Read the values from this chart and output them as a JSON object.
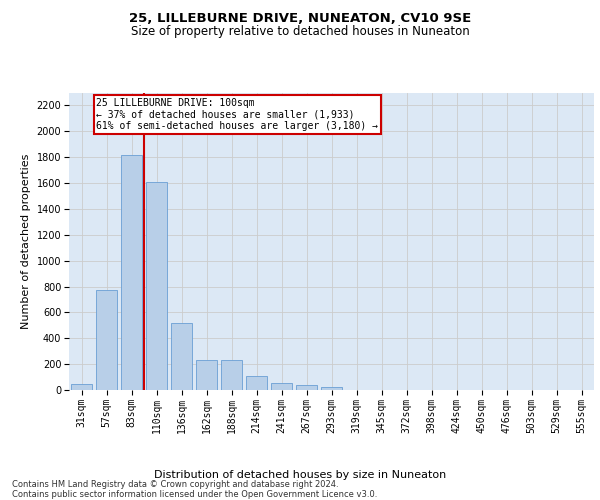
{
  "title": "25, LILLEBURNE DRIVE, NUNEATON, CV10 9SE",
  "subtitle": "Size of property relative to detached houses in Nuneaton",
  "xlabel": "Distribution of detached houses by size in Nuneaton",
  "ylabel": "Number of detached properties",
  "categories": [
    "31sqm",
    "57sqm",
    "83sqm",
    "110sqm",
    "136sqm",
    "162sqm",
    "188sqm",
    "214sqm",
    "241sqm",
    "267sqm",
    "293sqm",
    "319sqm",
    "345sqm",
    "372sqm",
    "398sqm",
    "424sqm",
    "450sqm",
    "476sqm",
    "503sqm",
    "529sqm",
    "555sqm"
  ],
  "values": [
    50,
    775,
    1820,
    1610,
    520,
    235,
    230,
    105,
    55,
    38,
    20,
    0,
    0,
    0,
    0,
    0,
    0,
    0,
    0,
    0,
    0
  ],
  "bar_color": "#b8cfe8",
  "bar_edge_color": "#6a9fd4",
  "highlight_index": 2,
  "highlight_line_color": "#cc0000",
  "annotation_text": "25 LILLEBURNE DRIVE: 100sqm\n← 37% of detached houses are smaller (1,933)\n61% of semi-detached houses are larger (3,180) →",
  "annotation_box_color": "#ffffff",
  "annotation_box_edge": "#cc0000",
  "ylim": [
    0,
    2300
  ],
  "yticks": [
    0,
    200,
    400,
    600,
    800,
    1000,
    1200,
    1400,
    1600,
    1800,
    2000,
    2200
  ],
  "grid_color": "#cccccc",
  "bg_color": "#dce8f5",
  "footer": "Contains HM Land Registry data © Crown copyright and database right 2024.\nContains public sector information licensed under the Open Government Licence v3.0.",
  "title_fontsize": 9.5,
  "subtitle_fontsize": 8.5,
  "ylabel_fontsize": 8,
  "xlabel_fontsize": 8,
  "tick_fontsize": 7,
  "ann_fontsize": 7,
  "footer_fontsize": 6
}
